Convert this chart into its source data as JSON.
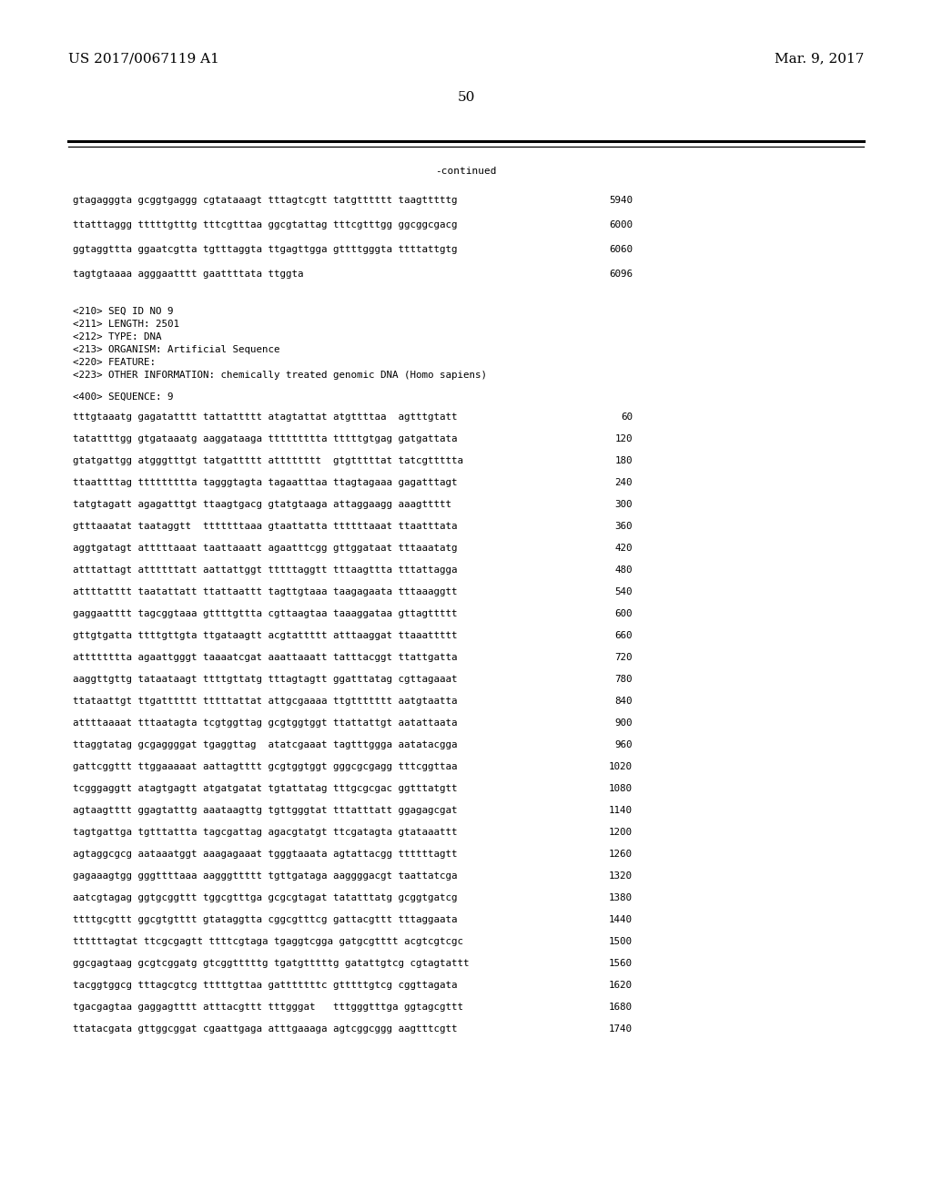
{
  "header_left": "US 2017/0067119 A1",
  "header_right": "Mar. 9, 2017",
  "page_number": "50",
  "continued_label": "-continued",
  "background_color": "#ffffff",
  "text_color": "#000000",
  "font_size_header": 11.0,
  "font_size_body": 8.0,
  "font_size_seq": 7.8,
  "continued_lines": [
    {
      "seq": "gtagagggta gcggtgaggg cgtataaagt tttagtcgtt tatgtttttt taagtttttg",
      "num": "5940"
    },
    {
      "seq": "ttatttaggg tttttgtttg tttcgtttaa ggcgtattag tttcgtttgg ggcggcgacg",
      "num": "6000"
    },
    {
      "seq": "ggtaggttta ggaatcgtta tgtttaggta ttgagttgga gttttgggta ttttattgtg",
      "num": "6060"
    },
    {
      "seq": "tagtgtaaaa agggaatttt gaattttata ttggta",
      "num": "6096"
    }
  ],
  "metadata_lines": [
    "<210> SEQ ID NO 9",
    "<211> LENGTH: 2501",
    "<212> TYPE: DNA",
    "<213> ORGANISM: Artificial Sequence",
    "<220> FEATURE:",
    "<223> OTHER INFORMATION: chemically treated genomic DNA (Homo sapiens)"
  ],
  "sequence_label": "<400> SEQUENCE: 9",
  "sequence_lines": [
    {
      "seq": "tttgtaaatg gagatatttt tattattttt atagtattat atgttttaa  agtttgtatt",
      "num": "60"
    },
    {
      "seq": "tatattttgg gtgataaatg aaggataaga ttttttttta tttttgtgag gatgattata",
      "num": "120"
    },
    {
      "seq": "gtatgattgg atgggtttgt tatgattttt atttttttt  gtgtttttat tatcgttttta",
      "num": "180"
    },
    {
      "seq": "ttaattttag ttttttttta tagggtagta tagaatttaa ttagtagaaa gagatttagt",
      "num": "240"
    },
    {
      "seq": "tatgtagatt agagatttgt ttaagtgacg gtatgtaaga attaggaagg aaagttttt",
      "num": "300"
    },
    {
      "seq": "gtttaaatat taataggtt  tttttttaaa gtaattatta ttttttaaat ttaatttata",
      "num": "360"
    },
    {
      "seq": "aggtgatagt atttttaaat taattaaatt agaatttcgg gttggataat tttaaatatg",
      "num": "420"
    },
    {
      "seq": "atttattagt attttttatt aattattggt tttttaggtt tttaagttta tttattagga",
      "num": "480"
    },
    {
      "seq": "attttatttt taatattatt ttattaattt tagttgtaaa taagagaata tttaaaggtt",
      "num": "540"
    },
    {
      "seq": "gaggaatttt tagcggtaaa gttttgttta cgttaagtaa taaaggataa gttagttttt",
      "num": "600"
    },
    {
      "seq": "gttgtgatta ttttgttgta ttgataagtt acgtattttt atttaaggat ttaaattttt",
      "num": "660"
    },
    {
      "seq": "atttttttta agaattgggt taaaatcgat aaattaaatt tatttacggt ttattgatta",
      "num": "720"
    },
    {
      "seq": "aaggttgttg tataataagt ttttgttatg tttagtagtt ggatttatag cgttagaaat",
      "num": "780"
    },
    {
      "seq": "ttataattgt ttgatttttt tttttattat attgcgaaaa ttgttttttt aatgtaatta",
      "num": "840"
    },
    {
      "seq": "attttaaaat tttaatagta tcgtggttag gcgtggtggt ttattattgt aatattaata",
      "num": "900"
    },
    {
      "seq": "ttaggtatag gcgaggggat tgaggttag  atatcgaaat tagtttggga aatatacgga",
      "num": "960"
    },
    {
      "seq": "gattcggttt ttggaaaaat aattagtttt gcgtggtggt gggcgcgagg tttcggttaa",
      "num": "1020"
    },
    {
      "seq": "tcgggaggtt atagtgagtt atgatgatat tgtattatag tttgcgcgac ggtttatgtt",
      "num": "1080"
    },
    {
      "seq": "agtaagtttt ggagtatttg aaataagttg tgttgggtat tttatttatt ggagagcgat",
      "num": "1140"
    },
    {
      "seq": "tagtgattga tgtttattta tagcgattag agacgtatgt ttcgatagta gtataaattt",
      "num": "1200"
    },
    {
      "seq": "agtaggcgcg aataaatggt aaagagaaat tgggtaaata agtattacgg ttttttagtt",
      "num": "1260"
    },
    {
      "seq": "gagaaagtgg gggttttaaa aagggttttt tgttgataga aaggggacgt taattatcga",
      "num": "1320"
    },
    {
      "seq": "aatcgtagag ggtgcggttt tggcgtttga gcgcgtagat tatatttatg gcggtgatcg",
      "num": "1380"
    },
    {
      "seq": "ttttgcgttt ggcgtgtttt gtataggtta cggcgtttcg gattacgttt tttaggaata",
      "num": "1440"
    },
    {
      "seq": "ttttttagtat ttcgcgagtt ttttcgtaga tgaggtcgga gatgcgtttt acgtcgtcgc",
      "num": "1500"
    },
    {
      "seq": "ggcgagtaag gcgtcggatg gtcggtttttg tgatgtttttg gatattgtcg cgtagtattt",
      "num": "1560"
    },
    {
      "seq": "tacggtggcg tttagcgtcg tttttgttaa gatttttttc gtttttgtcg cggttagata",
      "num": "1620"
    },
    {
      "seq": "tgacgagtaa gaggagtttt atttacgttt tttgggat   tttgggtttga ggtagcgttt",
      "num": "1680"
    },
    {
      "seq": "ttatacgata gttggcggat cgaattgaga atttgaaaga agtcggcggg aagtttcgtt",
      "num": "1740"
    }
  ]
}
